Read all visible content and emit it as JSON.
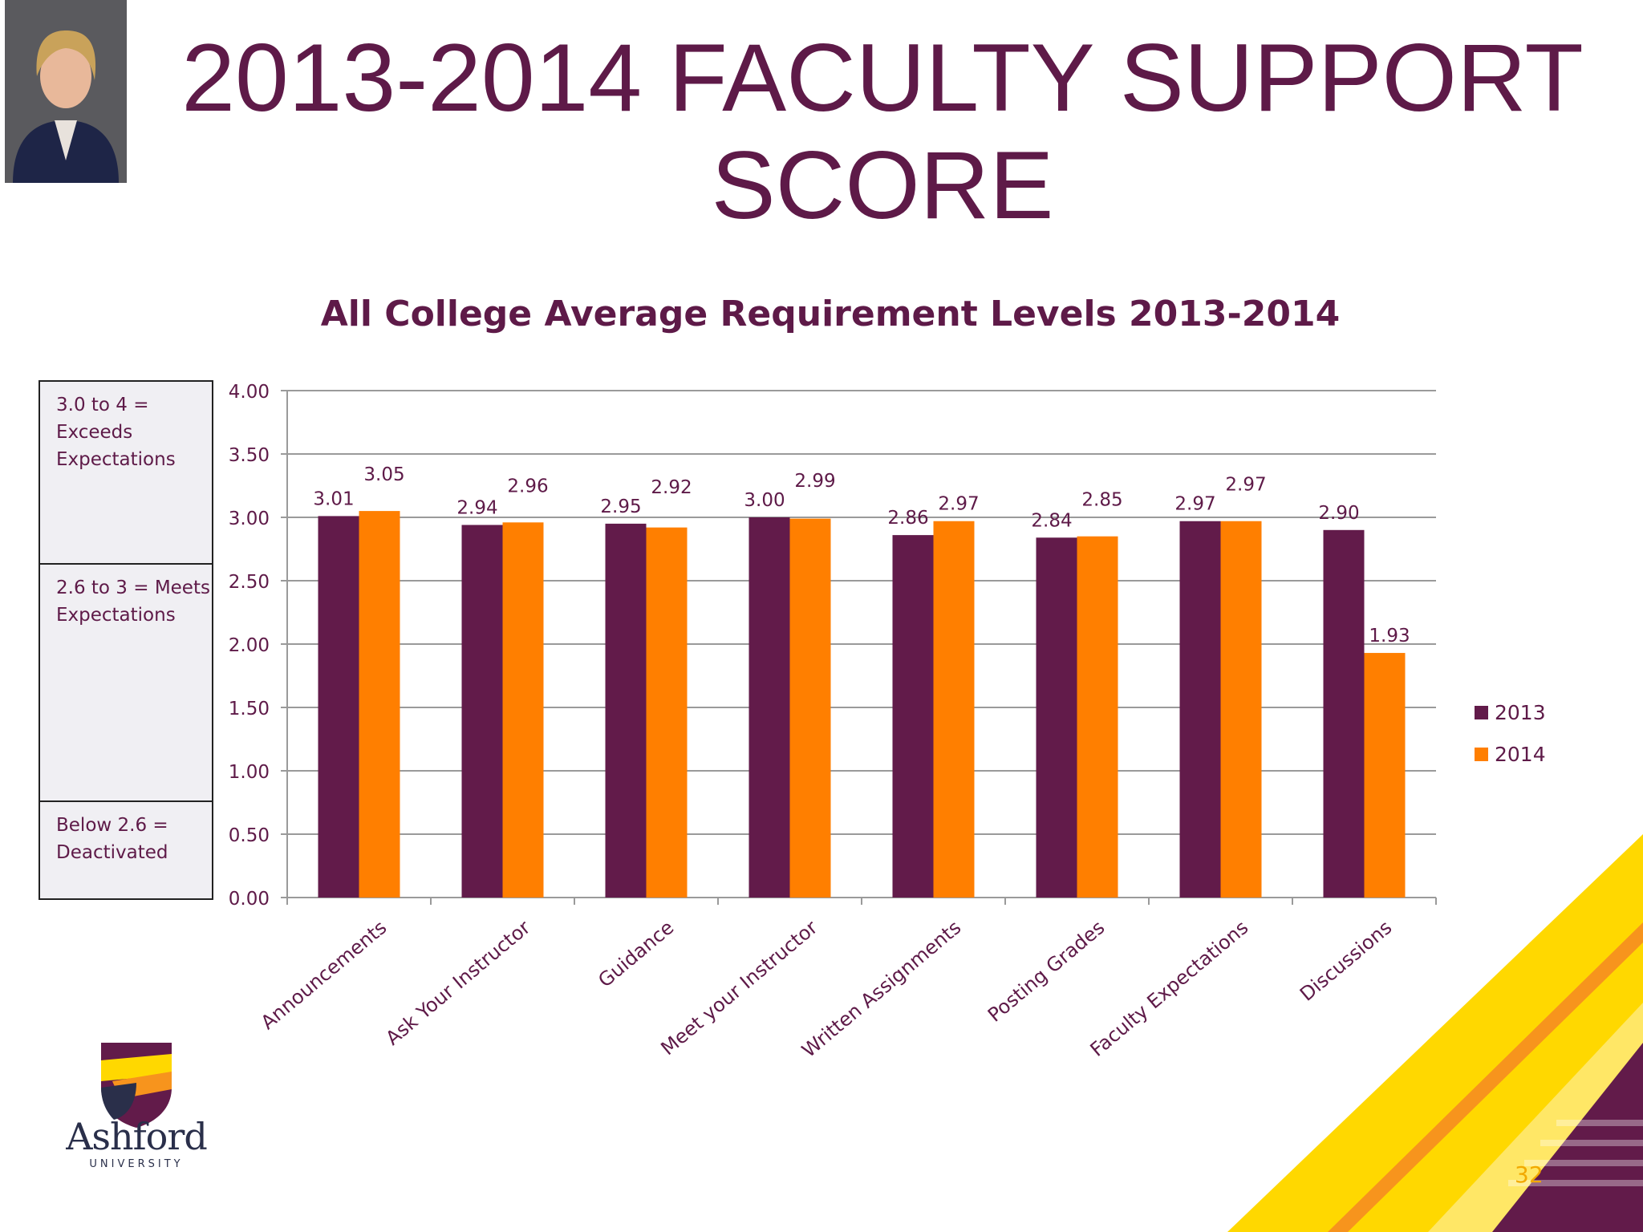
{
  "slide": {
    "title": "2013-2014 FACULTY SUPPORT SCORE",
    "page_number": "32"
  },
  "logo": {
    "name": "Ashford",
    "tagline": "UNIVERSITY"
  },
  "legend_box": [
    "3.0 to 4 = Exceeds Expectations",
    "2.6 to 3 = Meets Expectations",
    "Below 2.6 = Deactivated"
  ],
  "colors": {
    "series_2013": "#621b4a",
    "series_2014": "#ff7f00",
    "title": "#5e1a48",
    "accent_yellow": "#ffd800"
  },
  "chart_data": {
    "type": "bar",
    "title": "All College Average Requirement Levels 2013-2014",
    "categories": [
      "Announcements",
      "Ask Your Instructor",
      "Guidance",
      "Meet your Instructor",
      "Written Assignments",
      "Posting Grades",
      "Faculty Expectations",
      "Discussions"
    ],
    "series": [
      {
        "name": "2013",
        "values": [
          3.01,
          2.94,
          2.95,
          3.0,
          2.86,
          2.84,
          2.97,
          2.9
        ]
      },
      {
        "name": "2014",
        "values": [
          3.05,
          2.96,
          2.92,
          2.99,
          2.97,
          2.85,
          2.97,
          1.93
        ]
      }
    ],
    "data_labels": [
      [
        "3.01",
        "2.94",
        "2.95",
        "3.00",
        "2.86",
        "2.84",
        "2.97",
        "2.90"
      ],
      [
        "3.05",
        "2.96",
        "2.92",
        "2.99",
        "2.97",
        "2.85",
        "2.97",
        "1.93"
      ]
    ],
    "y_ticks": [
      "0.00",
      "0.50",
      "1.00",
      "1.50",
      "2.00",
      "2.50",
      "3.00",
      "3.50",
      "4.00"
    ],
    "ylim": [
      0,
      4
    ],
    "grid": true,
    "legend_position": "right"
  }
}
